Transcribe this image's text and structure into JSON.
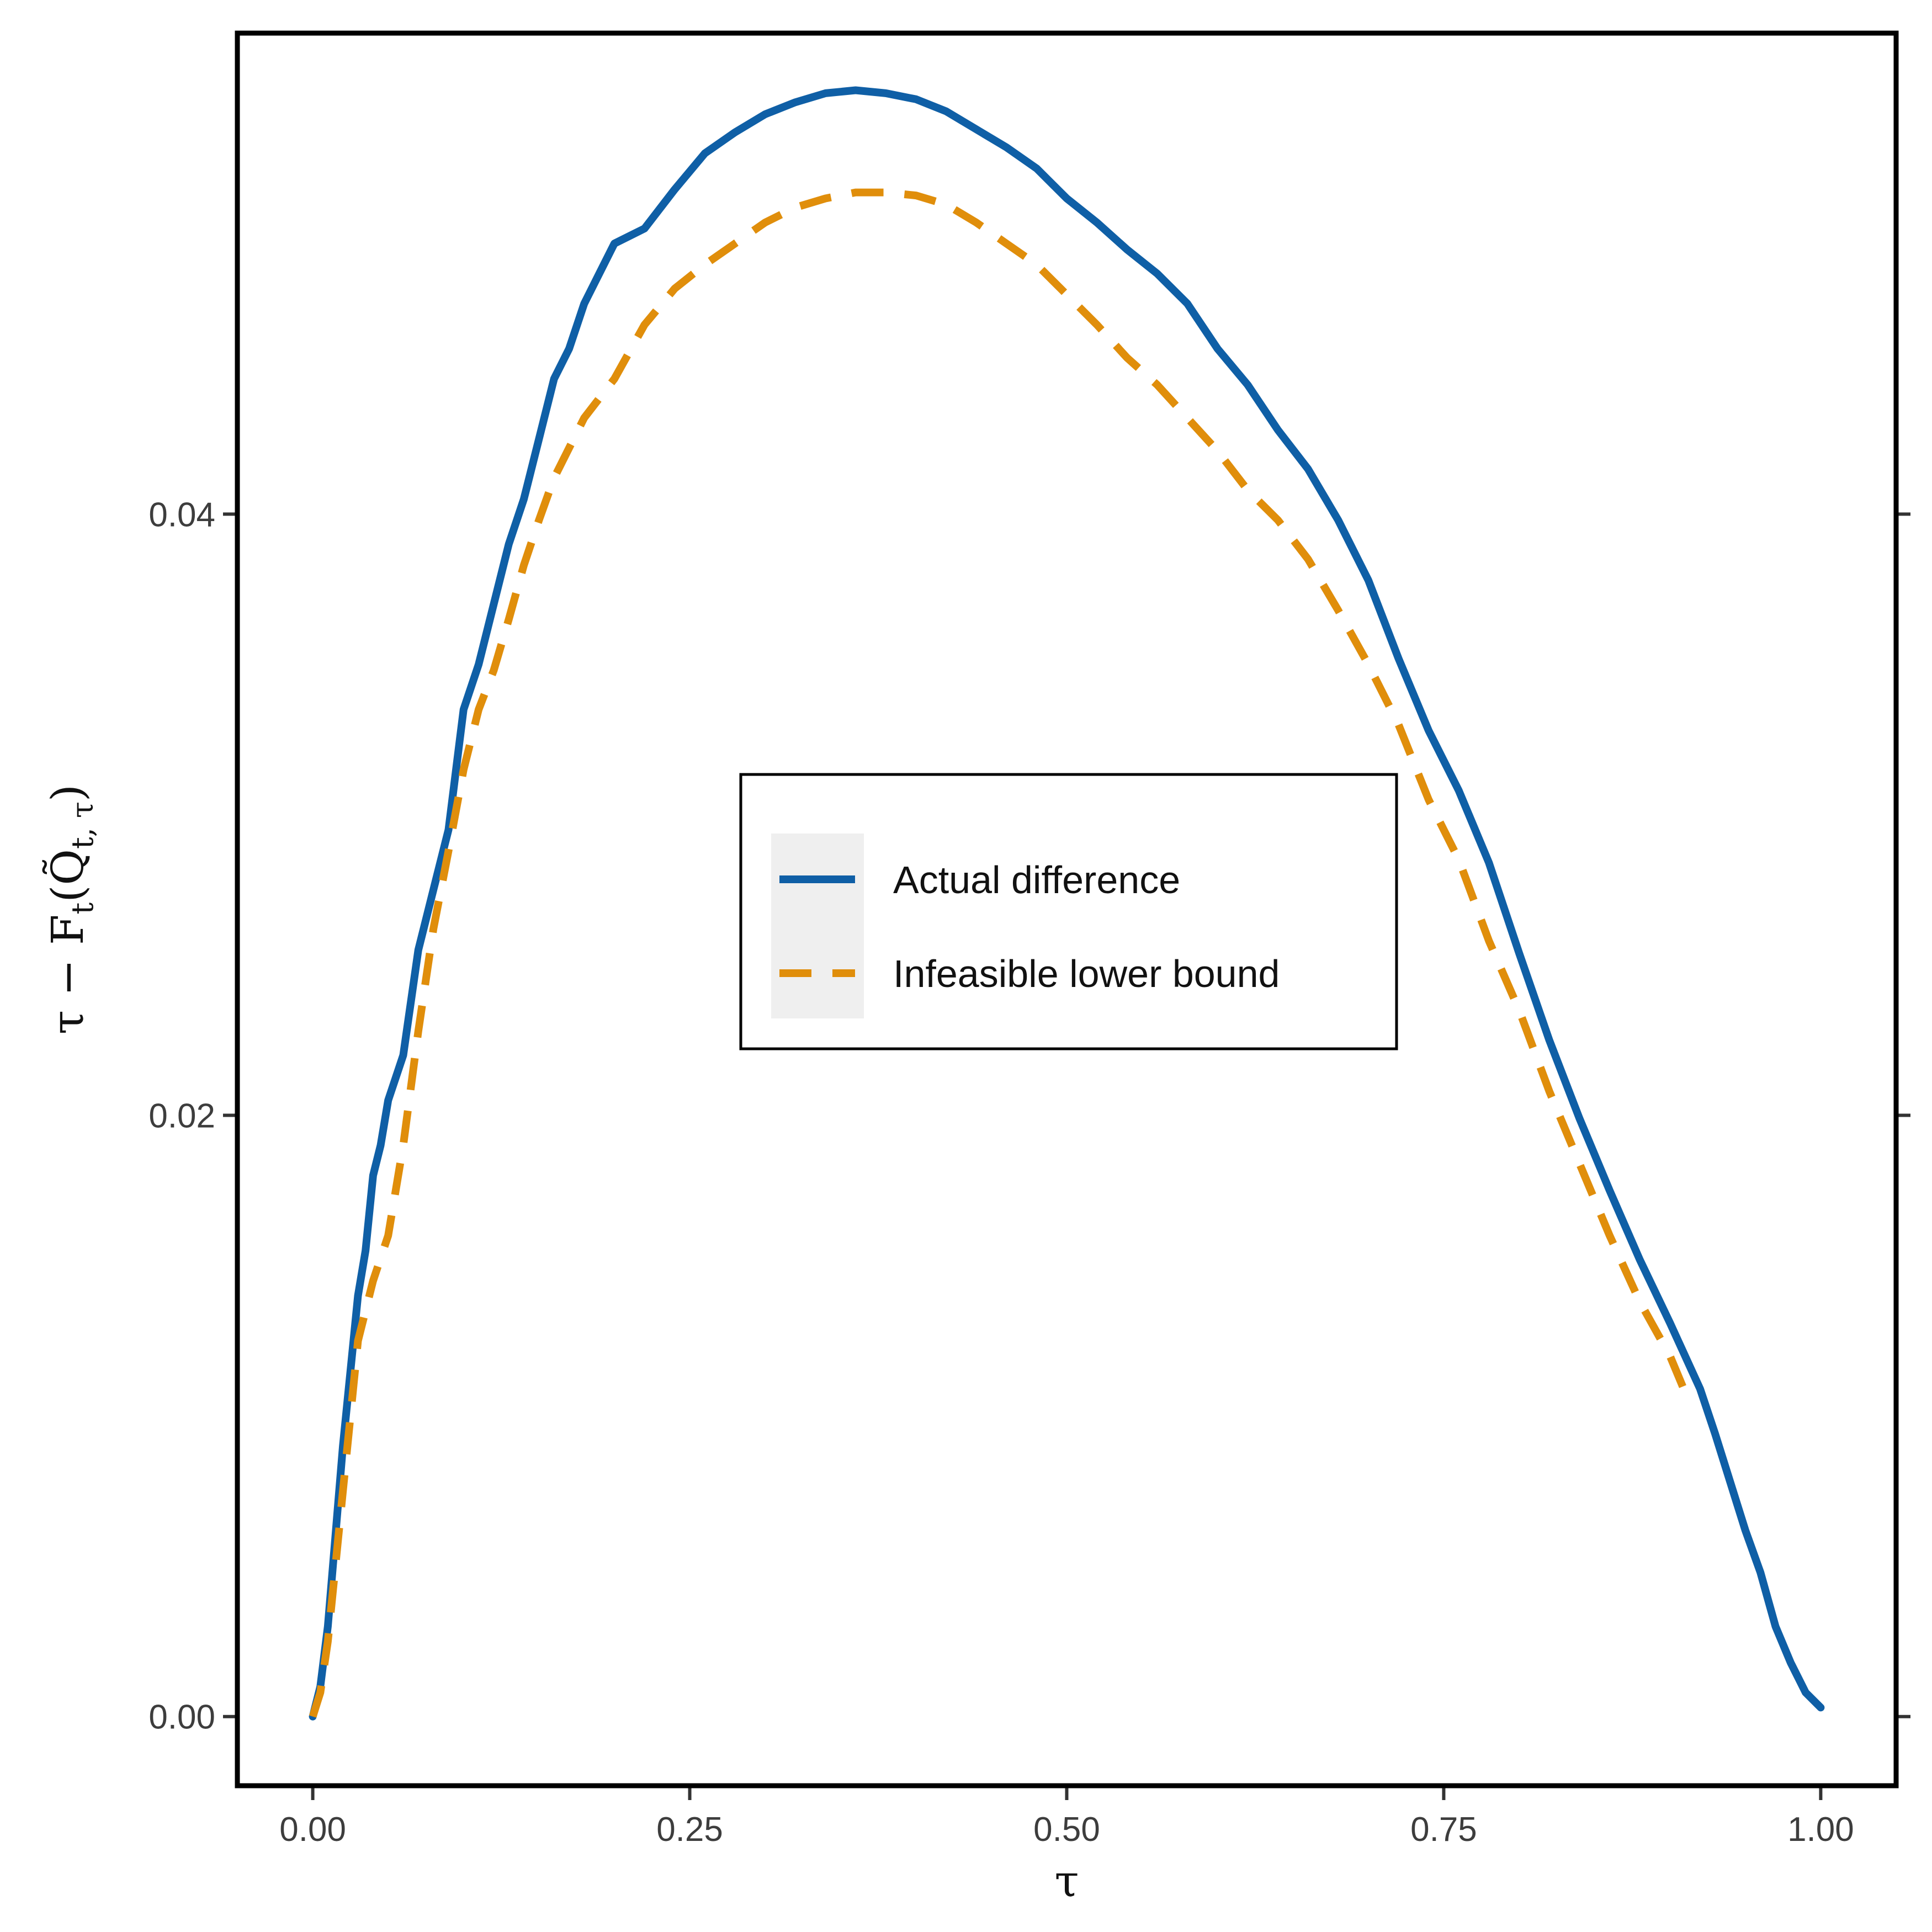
{
  "chart_data": {
    "type": "line",
    "xlabel": "τ",
    "ylabel": {
      "main": "τ − F",
      "sub": "t",
      "open": "(Q̃",
      "sub2": "t, τ",
      "close": ")"
    },
    "xlim": [
      -0.05,
      1.05
    ],
    "ylim": [
      -0.0023,
      0.056
    ],
    "x_ticks": [
      0.0,
      0.25,
      0.5,
      0.75,
      1.0
    ],
    "x_tick_labels": [
      "0.00",
      "0.25",
      "0.50",
      "0.75",
      "1.00"
    ],
    "y_ticks": [
      0.0,
      0.02,
      0.04
    ],
    "y_tick_labels": [
      "0.00",
      "0.02",
      "0.04"
    ],
    "grid": false,
    "legend_placement": "center",
    "series": [
      {
        "name": "Actual difference",
        "color": "#0F5FA6",
        "dash": "solid",
        "points": [
          [
            0.0,
            0.0
          ],
          [
            0.005,
            0.001
          ],
          [
            0.01,
            0.003
          ],
          [
            0.015,
            0.006
          ],
          [
            0.02,
            0.009
          ],
          [
            0.025,
            0.0115
          ],
          [
            0.03,
            0.014
          ],
          [
            0.035,
            0.0155
          ],
          [
            0.04,
            0.018
          ],
          [
            0.045,
            0.019
          ],
          [
            0.05,
            0.0205
          ],
          [
            0.06,
            0.022
          ],
          [
            0.07,
            0.0255
          ],
          [
            0.08,
            0.0275
          ],
          [
            0.09,
            0.0295
          ],
          [
            0.1,
            0.0335
          ],
          [
            0.11,
            0.035
          ],
          [
            0.12,
            0.037
          ],
          [
            0.13,
            0.039
          ],
          [
            0.14,
            0.0405
          ],
          [
            0.15,
            0.0425
          ],
          [
            0.16,
            0.0445
          ],
          [
            0.17,
            0.0455
          ],
          [
            0.18,
            0.047
          ],
          [
            0.19,
            0.048
          ],
          [
            0.2,
            0.049
          ],
          [
            0.22,
            0.0495
          ],
          [
            0.24,
            0.0508
          ],
          [
            0.26,
            0.052
          ],
          [
            0.28,
            0.0527
          ],
          [
            0.3,
            0.0533
          ],
          [
            0.32,
            0.0537
          ],
          [
            0.34,
            0.054
          ],
          [
            0.36,
            0.0541
          ],
          [
            0.38,
            0.054
          ],
          [
            0.4,
            0.0538
          ],
          [
            0.42,
            0.0534
          ],
          [
            0.44,
            0.0528
          ],
          [
            0.46,
            0.0522
          ],
          [
            0.48,
            0.0515
          ],
          [
            0.5,
            0.0505
          ],
          [
            0.52,
            0.0497
          ],
          [
            0.54,
            0.0488
          ],
          [
            0.56,
            0.048
          ],
          [
            0.58,
            0.047
          ],
          [
            0.6,
            0.0455
          ],
          [
            0.62,
            0.0443
          ],
          [
            0.64,
            0.0428
          ],
          [
            0.66,
            0.0415
          ],
          [
            0.68,
            0.0398
          ],
          [
            0.7,
            0.0378
          ],
          [
            0.72,
            0.0352
          ],
          [
            0.74,
            0.0328
          ],
          [
            0.76,
            0.0308
          ],
          [
            0.78,
            0.0284
          ],
          [
            0.8,
            0.0254
          ],
          [
            0.82,
            0.0225
          ],
          [
            0.84,
            0.0199
          ],
          [
            0.86,
            0.0175
          ],
          [
            0.88,
            0.0152
          ],
          [
            0.9,
            0.0131
          ],
          [
            0.92,
            0.0109
          ],
          [
            0.93,
            0.0094
          ],
          [
            0.94,
            0.0078
          ],
          [
            0.95,
            0.0062
          ],
          [
            0.96,
            0.0048
          ],
          [
            0.97,
            0.003
          ],
          [
            0.98,
            0.0018
          ],
          [
            0.99,
            0.0008
          ],
          [
            1.0,
            0.0003
          ]
        ]
      },
      {
        "name": "Infeasible lower bound",
        "color": "#E08E0B",
        "dash": "dashed",
        "points": [
          [
            0.0,
            0.0
          ],
          [
            0.005,
            0.0008
          ],
          [
            0.01,
            0.0025
          ],
          [
            0.015,
            0.005
          ],
          [
            0.02,
            0.0075
          ],
          [
            0.025,
            0.01
          ],
          [
            0.03,
            0.0125
          ],
          [
            0.04,
            0.0145
          ],
          [
            0.05,
            0.016
          ],
          [
            0.06,
            0.019
          ],
          [
            0.07,
            0.0228
          ],
          [
            0.08,
            0.0262
          ],
          [
            0.09,
            0.0288
          ],
          [
            0.1,
            0.0315
          ],
          [
            0.11,
            0.0335
          ],
          [
            0.12,
            0.0348
          ],
          [
            0.13,
            0.0365
          ],
          [
            0.14,
            0.0383
          ],
          [
            0.15,
            0.0398
          ],
          [
            0.16,
            0.0412
          ],
          [
            0.18,
            0.0432
          ],
          [
            0.2,
            0.0445
          ],
          [
            0.22,
            0.0463
          ],
          [
            0.24,
            0.0475
          ],
          [
            0.26,
            0.0483
          ],
          [
            0.28,
            0.049
          ],
          [
            0.3,
            0.0497
          ],
          [
            0.32,
            0.0502
          ],
          [
            0.34,
            0.0505
          ],
          [
            0.36,
            0.0507
          ],
          [
            0.38,
            0.0507
          ],
          [
            0.4,
            0.0506
          ],
          [
            0.42,
            0.0503
          ],
          [
            0.44,
            0.0497
          ],
          [
            0.46,
            0.049
          ],
          [
            0.48,
            0.0483
          ],
          [
            0.5,
            0.0473
          ],
          [
            0.52,
            0.0463
          ],
          [
            0.54,
            0.0452
          ],
          [
            0.56,
            0.0443
          ],
          [
            0.58,
            0.0432
          ],
          [
            0.6,
            0.0421
          ],
          [
            0.62,
            0.0408
          ],
          [
            0.64,
            0.0398
          ],
          [
            0.66,
            0.0385
          ],
          [
            0.68,
            0.0368
          ],
          [
            0.7,
            0.035
          ],
          [
            0.72,
            0.033
          ],
          [
            0.74,
            0.0305
          ],
          [
            0.76,
            0.0285
          ],
          [
            0.78,
            0.0258
          ],
          [
            0.8,
            0.0235
          ],
          [
            0.82,
            0.0208
          ],
          [
            0.84,
            0.0184
          ],
          [
            0.86,
            0.016
          ],
          [
            0.88,
            0.0138
          ],
          [
            0.9,
            0.012
          ],
          [
            0.91,
            0.0108
          ]
        ]
      }
    ]
  }
}
